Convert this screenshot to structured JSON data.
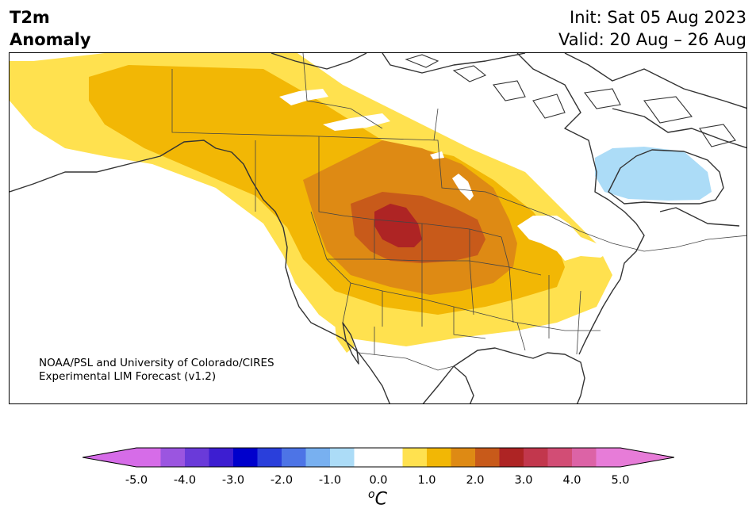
{
  "title": {
    "line1": "T2m",
    "line2": "Anomaly"
  },
  "forecast": {
    "init": "Init: Sat 05 Aug 2023",
    "valid": "Valid: 20 Aug – 26 Aug"
  },
  "credit": {
    "line1": "NOAA/PSL and University of Colorado/CIRES",
    "line2": "Experimental LIM Forecast (v1.2)"
  },
  "colorbar": {
    "unit_sup": "o",
    "unit": "C",
    "tick_labels": [
      "-5.0",
      "-4.0",
      "-3.0",
      "-2.0",
      "-1.0",
      "0.0",
      "1.0",
      "2.0",
      "3.0",
      "4.0",
      "5.0"
    ],
    "colors": [
      "#d66ce8",
      "#9b55e0",
      "#6a3ad9",
      "#3d1ed1",
      "#0000cc",
      "#2a3fdb",
      "#4d74e6",
      "#78b0f0",
      "#acdcf7",
      "#ffffff",
      "#ffffff",
      "#ffe14f",
      "#f2b705",
      "#de8a14",
      "#c85a1a",
      "#ae2424",
      "#c2374d",
      "#d24d75",
      "#dc63a6",
      "#e77cd8"
    ],
    "extend_min_color": "#d66ce8",
    "extend_max_color": "#e77cd8"
  },
  "legend_colors": {
    "anomaly_0_5": "#ffe14f",
    "anomaly_1_0": "#f2b705",
    "anomaly_1_5": "#de8a14",
    "anomaly_2_0": "#c85a1a",
    "anomaly_2_5": "#ae2424",
    "anomaly_neg_1_0": "#acdcf7"
  }
}
